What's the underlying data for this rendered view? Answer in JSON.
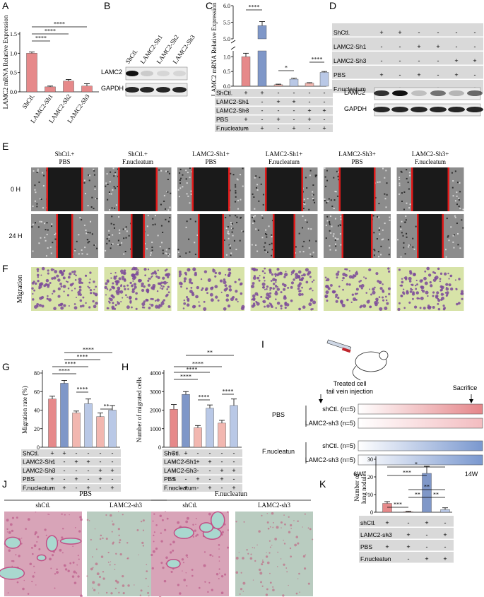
{
  "panel_letters": [
    "A",
    "B",
    "C",
    "D",
    "E",
    "F",
    "G",
    "H",
    "I",
    "J",
    "K"
  ],
  "colors": {
    "shctl": "#e6898a",
    "shctl_fn": "#7f97c8",
    "sh_pbs": "#f2b7b0",
    "sh_fn": "#b9c8e6",
    "blot_bg": "#ececec",
    "scratch_bg": "#1a1a1a",
    "scratch_edge": "#e21a1a",
    "migration_bg": "#d7e3a8",
    "migration_cell": "#7b4a9a",
    "he_pink": "#e8a6b6",
    "he_cyan": "#a9d8cf"
  },
  "significance": "****",
  "panelA": {
    "ylabel": "LAMC2 mRNA Relative Expression",
    "ticks": [
      "0.0",
      "0.5",
      "1.0",
      "1.5"
    ],
    "categories": [
      "ShCtl.",
      "LAMC2-Sh1",
      "LAMC2-Sh2",
      "LAMC2-Sh3"
    ],
    "stars": [
      "****",
      "****",
      "****"
    ]
  },
  "panelB": {
    "lanes": [
      "ShCtl.",
      "LAMC2-Sh1",
      "LAMC2-Sh2",
      "LAMC2-Sh3"
    ],
    "rows": [
      "LAMC2",
      "GAPDH"
    ]
  },
  "panelC": {
    "ylabel": "LAMC2 mRNA Relative Expression",
    "ticks_low": [
      "0.0",
      "0.5",
      "1.0"
    ],
    "ticks_high": [
      "5.0",
      "5.5",
      "6.0"
    ],
    "stars": [
      "****",
      "*",
      "****"
    ],
    "row_labels": [
      "ShCtl.",
      "LAMC2-Sh1",
      "LAMC2-Sh3",
      "PBS",
      "F.nucleatum"
    ],
    "row_signs": [
      [
        "+",
        "+",
        "-",
        "-",
        "-",
        "-"
      ],
      [
        "-",
        "-",
        "+",
        "+",
        "-",
        "-"
      ],
      [
        "-",
        "-",
        "-",
        "-",
        "+",
        "+"
      ],
      [
        "+",
        "-",
        "+",
        "-",
        "+",
        "-"
      ],
      [
        "-",
        "+",
        "-",
        "+",
        "-",
        "+"
      ]
    ]
  },
  "panelD": {
    "row_labels": [
      "ShCtl.",
      "LAMC2-Sh1",
      "LAMC2-Sh3",
      "PBS",
      "F.nucleatum"
    ],
    "row_signs": [
      [
        "+",
        "+",
        "-",
        "-",
        "-",
        "-"
      ],
      [
        "-",
        "-",
        "+",
        "+",
        "-",
        "-"
      ],
      [
        "-",
        "-",
        "-",
        "-",
        "+",
        "+"
      ],
      [
        "+",
        "-",
        "+",
        "-",
        "+",
        "-"
      ],
      [
        "-",
        "+",
        "-",
        "+",
        "-",
        "+"
      ]
    ],
    "blot_rows": [
      "LAMC2",
      "GAPDH"
    ]
  },
  "panelE": {
    "columns": [
      [
        "ShCtl.+",
        "PBS"
      ],
      [
        "ShCtl.+",
        "F.nucleatum"
      ],
      [
        "LAMC2-Sh1+",
        "PBS"
      ],
      [
        "LAMC2-Sh1+",
        "F.nucleatum"
      ],
      [
        "LAMC2-Sh3+",
        "PBS"
      ],
      [
        "LAMC2-Sh3+",
        "F.nucleatum"
      ]
    ],
    "rows": [
      "0 H",
      "24 H"
    ]
  },
  "panelF": {
    "row_label": "Migration"
  },
  "panelG": {
    "ylabel": "Migration rate (%)",
    "ticks": [
      "0",
      "20",
      "40",
      "60",
      "80"
    ],
    "stars_top": [
      "****",
      "****",
      "****",
      "****"
    ],
    "stars_inner": [
      "****",
      "**"
    ],
    "row_labels": [
      "ShCtl.",
      "LAMC2-Sh1",
      "LAMC2-Sh3",
      "PBS",
      "F.nucleatum"
    ],
    "row_signs": [
      [
        "+",
        "+",
        "-",
        "-",
        "-",
        "-"
      ],
      [
        "-",
        "-",
        "+",
        "+",
        "-",
        "-"
      ],
      [
        "-",
        "-",
        "-",
        "-",
        "+",
        "+"
      ],
      [
        "+",
        "-",
        "+",
        "-",
        "+",
        "-"
      ],
      [
        "-",
        "+",
        "-",
        "+",
        "-",
        "+"
      ]
    ]
  },
  "panelH": {
    "ylabel": "Number of migrated cells",
    "ticks": [
      "0",
      "1000",
      "2000",
      "3000",
      "4000"
    ],
    "stars_top": [
      "**",
      "****",
      "****",
      "****"
    ],
    "stars_inner": [
      "****",
      "****"
    ],
    "row_labels": [
      "ShCtl.",
      "LAMC2-Sh1",
      "LAMC2-Sh3",
      "PBS",
      "F.nucleatum"
    ],
    "row_signs": [
      [
        "+",
        "+",
        "-",
        "-",
        "-",
        "-"
      ],
      [
        "-",
        "-",
        "+",
        "+",
        "-",
        "-"
      ],
      [
        "-",
        "-",
        "-",
        "-",
        "+",
        "+"
      ],
      [
        "+",
        "-",
        "+",
        "-",
        "+",
        "-"
      ],
      [
        "-",
        "+",
        "-",
        "+",
        "-",
        "+"
      ]
    ]
  },
  "panelI": {
    "treated": "Treated cell",
    "injection": "tail vein injection",
    "sacrifice": "Sacrifice",
    "groups": [
      {
        "group": "PBS",
        "rows": [
          "shCtl. (n=5)",
          "LAMC2-sh3 (n=5)"
        ]
      },
      {
        "group": "F.nucleatun",
        "rows": [
          "shCtl. (n=5)",
          "LAMC2-sh3 (n=5)"
        ]
      }
    ],
    "axis": [
      "6W",
      "14W"
    ]
  },
  "panelJ": {
    "groups": [
      "PBS",
      "F.nucleatun"
    ],
    "labels": [
      "shCtl.",
      "LAMC2-sh3",
      "shCtl.",
      "LAMC2-sh3"
    ]
  },
  "panelK": {
    "ylabel": "Number of lung nodules",
    "ticks": [
      "0",
      "10",
      "20",
      "30"
    ],
    "stars": [
      "***",
      "*",
      "**",
      "**",
      "**",
      "***"
    ],
    "row_labels": [
      "shCtl.",
      "LAMC2-sh3",
      "PBS",
      "F.nucleatun"
    ],
    "row_signs": [
      [
        "+",
        "-",
        "+",
        "-"
      ],
      [
        "-",
        "+",
        "-",
        "+"
      ],
      [
        "+",
        "+",
        "-",
        "-"
      ],
      [
        "-",
        "-",
        "+",
        "+"
      ]
    ]
  },
  "chart_data": [
    {
      "type": "bar",
      "panel": "A",
      "ylabel": "LAMC2 mRNA Relative Expression",
      "ylim": [
        0,
        1.5
      ],
      "categories": [
        "ShCtl.",
        "LAMC2-Sh1",
        "LAMC2-Sh2",
        "LAMC2-Sh3"
      ],
      "values": [
        1.0,
        0.13,
        0.28,
        0.15
      ],
      "errors": [
        0.03,
        0.02,
        0.04,
        0.06
      ]
    },
    {
      "type": "bar",
      "panel": "C",
      "ylabel": "LAMC2 mRNA Relative Expression",
      "y_break": [
        1.2,
        5.0
      ],
      "values": [
        1.0,
        5.4,
        0.05,
        0.24,
        0.1,
        0.47
      ],
      "errors": [
        0.12,
        0.12,
        0.02,
        0.03,
        0.02,
        0.03
      ]
    },
    {
      "type": "bar",
      "panel": "G",
      "ylabel": "Migration rate (%)",
      "ylim": [
        0,
        80
      ],
      "values": [
        52,
        69,
        37,
        47,
        33,
        40
      ],
      "errors": [
        3,
        3,
        2,
        5,
        4,
        5
      ]
    },
    {
      "type": "bar",
      "panel": "H",
      "ylabel": "Number of migrated cells",
      "ylim": [
        0,
        4000
      ],
      "values": [
        2050,
        2850,
        1050,
        2100,
        1300,
        2250
      ],
      "errors": [
        250,
        150,
        120,
        180,
        150,
        350
      ]
    },
    {
      "type": "bar",
      "panel": "K",
      "ylabel": "Number of lung nodules",
      "ylim": [
        0,
        30
      ],
      "values": [
        5,
        0.3,
        22,
        1.5
      ],
      "errors": [
        1,
        0.3,
        4,
        1
      ]
    }
  ]
}
